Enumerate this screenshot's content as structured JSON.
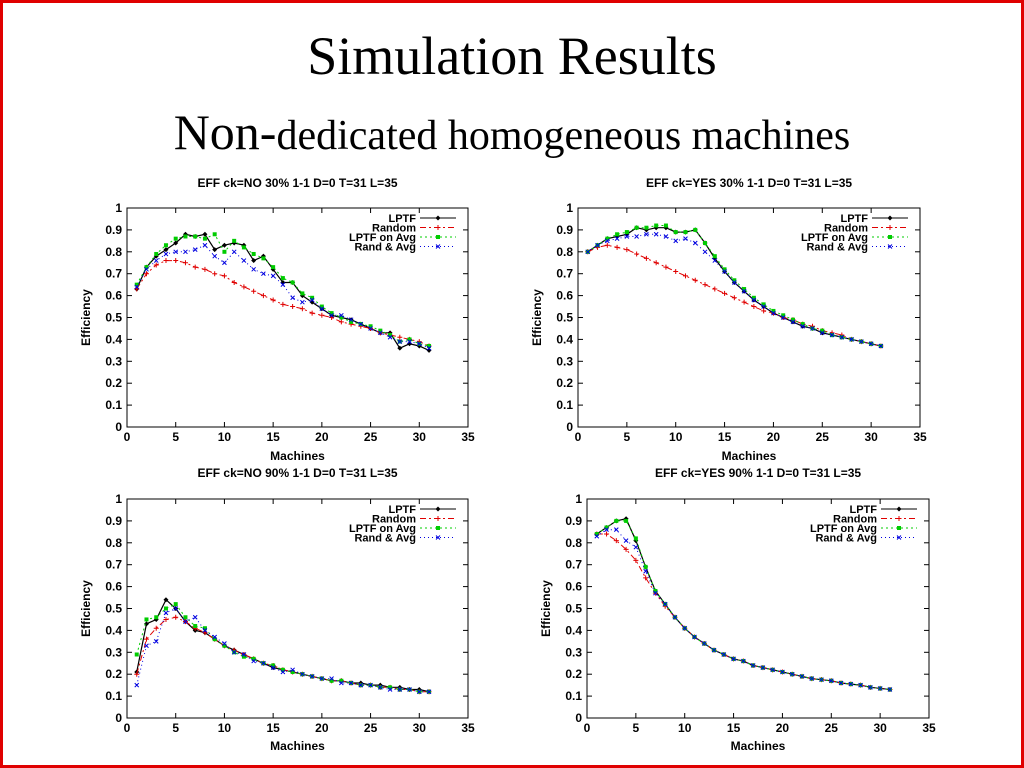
{
  "slide": {
    "title": "Simulation Results",
    "subtitle_lead": "Non-",
    "subtitle_rest": "dedicated homogeneous machines",
    "frame_color": "#e00000"
  },
  "legend_labels": [
    "LPTF",
    "Random",
    "LPTF on Avg",
    "Rand & Avg"
  ],
  "series_colors": [
    "#000000",
    "#e00000",
    "#00cc00",
    "#0000e0"
  ],
  "chart_data": [
    {
      "type": "line",
      "title": "EFF ck=NO 30% 1-1 D=0 T=31 L=35",
      "xlabel": "Machines",
      "ylabel": "Efficiency",
      "xlim": [
        0,
        35
      ],
      "ylim": [
        0,
        1
      ],
      "xticks": [
        0,
        5,
        10,
        15,
        20,
        25,
        30,
        35
      ],
      "yticks": [
        0,
        0.1,
        0.2,
        0.3,
        0.4,
        0.5,
        0.6,
        0.7,
        0.8,
        0.9,
        1
      ],
      "legend_position": "top-right",
      "grid": false,
      "x": [
        1,
        2,
        3,
        4,
        5,
        6,
        7,
        8,
        9,
        10,
        11,
        12,
        13,
        14,
        15,
        16,
        17,
        18,
        19,
        20,
        21,
        22,
        23,
        24,
        25,
        26,
        27,
        28,
        29,
        30,
        31
      ],
      "series": [
        {
          "name": "LPTF",
          "values": [
            0.63,
            0.73,
            0.78,
            0.81,
            0.84,
            0.88,
            0.87,
            0.88,
            0.81,
            0.83,
            0.84,
            0.83,
            0.76,
            0.78,
            0.72,
            0.66,
            0.66,
            0.6,
            0.57,
            0.54,
            0.51,
            0.5,
            0.49,
            0.47,
            0.45,
            0.43,
            0.43,
            0.36,
            0.38,
            0.37,
            0.35
          ]
        },
        {
          "name": "Random",
          "values": [
            0.63,
            0.7,
            0.74,
            0.76,
            0.76,
            0.75,
            0.73,
            0.72,
            0.7,
            0.69,
            0.66,
            0.64,
            0.62,
            0.6,
            0.58,
            0.56,
            0.55,
            0.54,
            0.52,
            0.51,
            0.5,
            0.48,
            0.47,
            0.46,
            0.45,
            0.43,
            0.42,
            0.41,
            0.4,
            0.39,
            0.37
          ]
        },
        {
          "name": "LPTF on Avg",
          "values": [
            0.65,
            0.73,
            0.79,
            0.83,
            0.86,
            0.87,
            0.87,
            0.86,
            0.88,
            0.8,
            0.85,
            0.82,
            0.79,
            0.77,
            0.73,
            0.68,
            0.66,
            0.61,
            0.59,
            0.55,
            0.52,
            0.5,
            0.48,
            0.47,
            0.46,
            0.44,
            0.42,
            0.39,
            0.4,
            0.38,
            0.37
          ]
        },
        {
          "name": "Rand & Avg",
          "values": [
            0.64,
            0.72,
            0.76,
            0.79,
            0.8,
            0.8,
            0.81,
            0.83,
            0.78,
            0.75,
            0.8,
            0.76,
            0.72,
            0.7,
            0.69,
            0.65,
            0.59,
            0.57,
            0.58,
            0.54,
            0.51,
            0.51,
            0.49,
            0.47,
            0.45,
            0.43,
            0.41,
            0.39,
            0.39,
            0.38,
            0.36
          ]
        }
      ]
    },
    {
      "type": "line",
      "title": "EFF ck=YES 30% 1-1 D=0 T=31 L=35",
      "xlabel": "Machines",
      "ylabel": "Efficiency",
      "xlim": [
        0,
        35
      ],
      "ylim": [
        0,
        1
      ],
      "xticks": [
        0,
        5,
        10,
        15,
        20,
        25,
        30,
        35
      ],
      "yticks": [
        0,
        0.1,
        0.2,
        0.3,
        0.4,
        0.5,
        0.6,
        0.7,
        0.8,
        0.9,
        1
      ],
      "legend_position": "top-right",
      "grid": false,
      "x": [
        1,
        2,
        3,
        4,
        5,
        6,
        7,
        8,
        9,
        10,
        11,
        12,
        13,
        14,
        15,
        16,
        17,
        18,
        19,
        20,
        21,
        22,
        23,
        24,
        25,
        26,
        27,
        28,
        29,
        30,
        31
      ],
      "series": [
        {
          "name": "LPTF",
          "values": [
            0.8,
            0.83,
            0.86,
            0.87,
            0.88,
            0.91,
            0.9,
            0.91,
            0.91,
            0.89,
            0.89,
            0.9,
            0.84,
            0.77,
            0.71,
            0.66,
            0.62,
            0.58,
            0.55,
            0.52,
            0.5,
            0.48,
            0.46,
            0.45,
            0.43,
            0.42,
            0.41,
            0.4,
            0.39,
            0.38,
            0.37
          ]
        },
        {
          "name": "Random",
          "values": [
            0.8,
            0.82,
            0.83,
            0.82,
            0.81,
            0.79,
            0.77,
            0.75,
            0.73,
            0.71,
            0.69,
            0.67,
            0.65,
            0.63,
            0.61,
            0.59,
            0.57,
            0.55,
            0.53,
            0.52,
            0.5,
            0.49,
            0.47,
            0.46,
            0.44,
            0.43,
            0.42,
            0.4,
            0.39,
            0.38,
            0.37
          ]
        },
        {
          "name": "LPTF on Avg",
          "values": [
            0.8,
            0.83,
            0.86,
            0.88,
            0.89,
            0.91,
            0.91,
            0.92,
            0.92,
            0.89,
            0.89,
            0.9,
            0.84,
            0.78,
            0.72,
            0.67,
            0.63,
            0.59,
            0.56,
            0.53,
            0.51,
            0.49,
            0.47,
            0.45,
            0.44,
            0.42,
            0.41,
            0.4,
            0.39,
            0.38,
            0.37
          ]
        },
        {
          "name": "Rand & Avg",
          "values": [
            0.8,
            0.83,
            0.85,
            0.86,
            0.87,
            0.87,
            0.88,
            0.88,
            0.87,
            0.85,
            0.86,
            0.84,
            0.8,
            0.76,
            0.71,
            0.66,
            0.62,
            0.58,
            0.55,
            0.52,
            0.5,
            0.48,
            0.46,
            0.45,
            0.43,
            0.42,
            0.41,
            0.4,
            0.39,
            0.38,
            0.37
          ]
        }
      ]
    },
    {
      "type": "line",
      "title": "EFF ck=NO 90% 1-1 D=0 T=31 L=35",
      "xlabel": "Machines",
      "ylabel": "Efficiency",
      "xlim": [
        0,
        35
      ],
      "ylim": [
        0,
        1
      ],
      "xticks": [
        0,
        5,
        10,
        15,
        20,
        25,
        30,
        35
      ],
      "yticks": [
        0,
        0.1,
        0.2,
        0.3,
        0.4,
        0.5,
        0.6,
        0.7,
        0.8,
        0.9,
        1
      ],
      "legend_position": "top-right",
      "grid": false,
      "x": [
        1,
        2,
        3,
        4,
        5,
        6,
        7,
        8,
        9,
        10,
        11,
        12,
        13,
        14,
        15,
        16,
        17,
        18,
        19,
        20,
        21,
        22,
        23,
        24,
        25,
        26,
        27,
        28,
        29,
        30,
        31
      ],
      "series": [
        {
          "name": "LPTF",
          "values": [
            0.21,
            0.43,
            0.45,
            0.54,
            0.5,
            0.44,
            0.4,
            0.39,
            0.36,
            0.33,
            0.31,
            0.29,
            0.27,
            0.25,
            0.23,
            0.22,
            0.21,
            0.2,
            0.19,
            0.18,
            0.17,
            0.17,
            0.16,
            0.16,
            0.15,
            0.15,
            0.14,
            0.14,
            0.13,
            0.13,
            0.12
          ]
        },
        {
          "name": "Random",
          "values": [
            0.2,
            0.36,
            0.41,
            0.45,
            0.46,
            0.44,
            0.41,
            0.39,
            0.36,
            0.33,
            0.31,
            0.29,
            0.27,
            0.25,
            0.24,
            0.22,
            0.21,
            0.2,
            0.19,
            0.18,
            0.17,
            0.17,
            0.16,
            0.15,
            0.15,
            0.14,
            0.14,
            0.13,
            0.13,
            0.12,
            0.12
          ]
        },
        {
          "name": "LPTF on Avg",
          "values": [
            0.29,
            0.45,
            0.46,
            0.5,
            0.52,
            0.46,
            0.42,
            0.41,
            0.36,
            0.33,
            0.3,
            0.28,
            0.27,
            0.25,
            0.24,
            0.22,
            0.21,
            0.2,
            0.19,
            0.18,
            0.17,
            0.17,
            0.16,
            0.15,
            0.15,
            0.14,
            0.14,
            0.13,
            0.13,
            0.12,
            0.12
          ]
        },
        {
          "name": "Rand & Avg",
          "values": [
            0.15,
            0.33,
            0.35,
            0.48,
            0.5,
            0.44,
            0.46,
            0.4,
            0.37,
            0.34,
            0.3,
            0.29,
            0.26,
            0.25,
            0.23,
            0.21,
            0.22,
            0.2,
            0.19,
            0.18,
            0.18,
            0.16,
            0.16,
            0.15,
            0.15,
            0.14,
            0.13,
            0.13,
            0.13,
            0.12,
            0.12
          ]
        }
      ]
    },
    {
      "type": "line",
      "title": "EFF ck=YES 90% 1-1 D=0 T=31 L=35",
      "xlabel": "Machines",
      "ylabel": "Efficiency",
      "xlim": [
        0,
        35
      ],
      "ylim": [
        0,
        1
      ],
      "xticks": [
        0,
        5,
        10,
        15,
        20,
        25,
        30,
        35
      ],
      "yticks": [
        0,
        0.1,
        0.2,
        0.3,
        0.4,
        0.5,
        0.6,
        0.7,
        0.8,
        0.9,
        1
      ],
      "legend_position": "top-right",
      "grid": false,
      "x": [
        1,
        2,
        3,
        4,
        5,
        6,
        7,
        8,
        9,
        10,
        11,
        12,
        13,
        14,
        15,
        16,
        17,
        18,
        19,
        20,
        21,
        22,
        23,
        24,
        25,
        26,
        27,
        28,
        29,
        30,
        31
      ],
      "series": [
        {
          "name": "LPTF",
          "values": [
            0.84,
            0.87,
            0.9,
            0.91,
            0.81,
            0.69,
            0.58,
            0.52,
            0.46,
            0.41,
            0.37,
            0.34,
            0.31,
            0.29,
            0.27,
            0.26,
            0.24,
            0.23,
            0.22,
            0.21,
            0.2,
            0.19,
            0.18,
            0.175,
            0.17,
            0.16,
            0.155,
            0.15,
            0.14,
            0.135,
            0.13
          ]
        },
        {
          "name": "Random",
          "values": [
            0.84,
            0.84,
            0.81,
            0.77,
            0.72,
            0.64,
            0.57,
            0.51,
            0.46,
            0.41,
            0.37,
            0.34,
            0.31,
            0.29,
            0.27,
            0.26,
            0.24,
            0.23,
            0.22,
            0.21,
            0.2,
            0.19,
            0.18,
            0.175,
            0.17,
            0.16,
            0.155,
            0.15,
            0.14,
            0.135,
            0.13
          ]
        },
        {
          "name": "LPTF on Avg",
          "values": [
            0.84,
            0.87,
            0.9,
            0.9,
            0.82,
            0.69,
            0.58,
            0.52,
            0.46,
            0.41,
            0.37,
            0.34,
            0.31,
            0.29,
            0.27,
            0.26,
            0.24,
            0.23,
            0.22,
            0.21,
            0.2,
            0.19,
            0.18,
            0.175,
            0.17,
            0.16,
            0.155,
            0.15,
            0.14,
            0.135,
            0.13
          ]
        },
        {
          "name": "Rand & Avg",
          "values": [
            0.83,
            0.86,
            0.86,
            0.81,
            0.78,
            0.67,
            0.57,
            0.52,
            0.46,
            0.41,
            0.37,
            0.34,
            0.31,
            0.29,
            0.27,
            0.26,
            0.24,
            0.23,
            0.22,
            0.21,
            0.2,
            0.19,
            0.18,
            0.175,
            0.17,
            0.16,
            0.155,
            0.15,
            0.14,
            0.135,
            0.13
          ]
        }
      ]
    }
  ]
}
